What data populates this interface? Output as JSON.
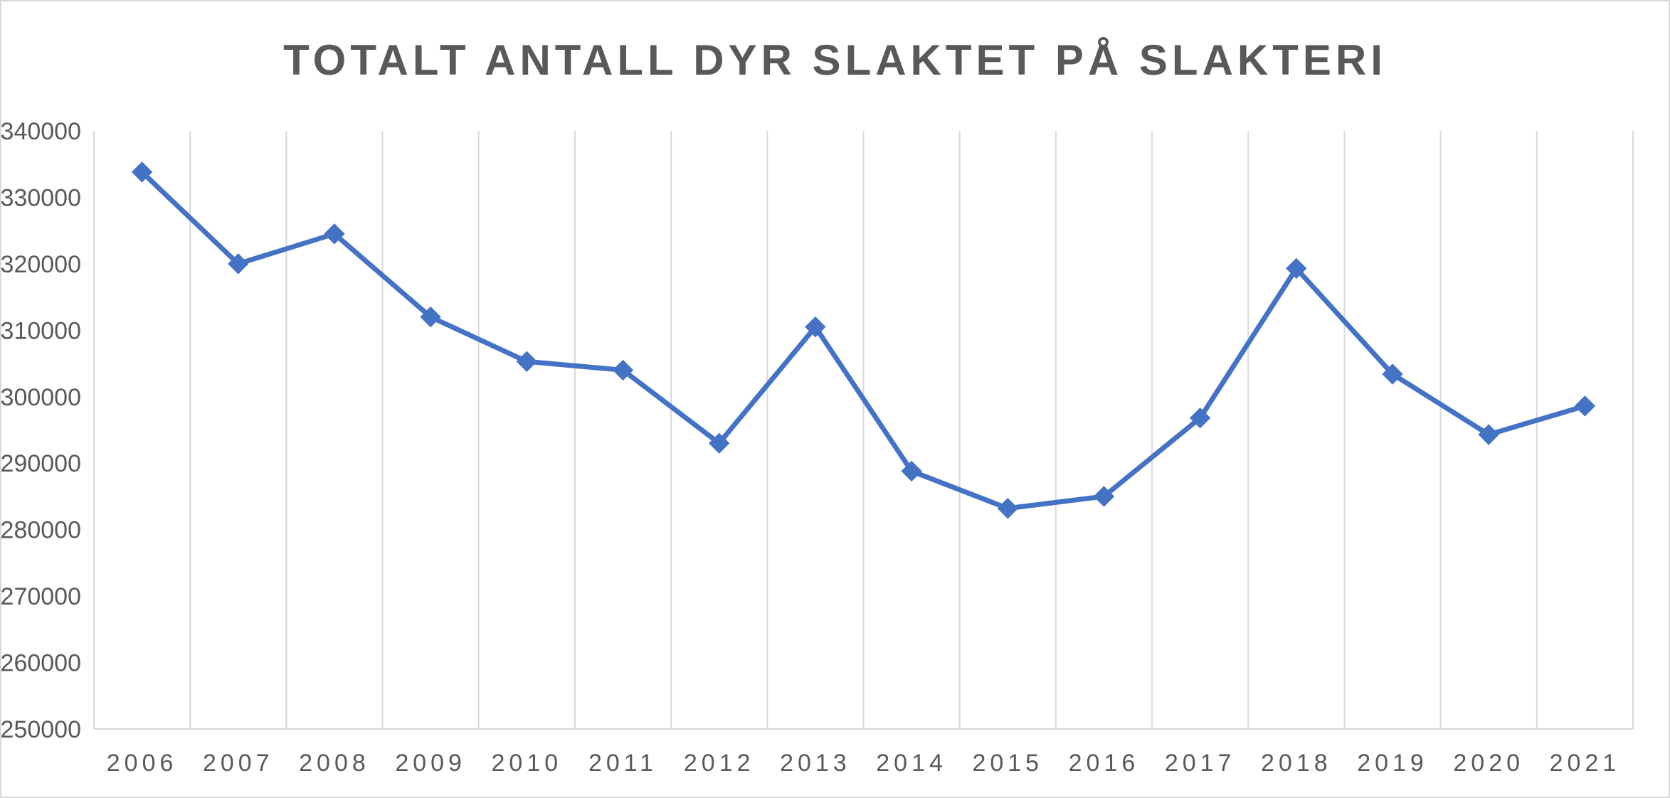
{
  "chart_data": {
    "type": "line",
    "title": "TOTALT ANTALL DYR SLAKTET PÅ SLAKTERI",
    "xlabel": "",
    "ylabel": "",
    "categories": [
      "2006",
      "2007",
      "2008",
      "2009",
      "2010",
      "2011",
      "2012",
      "2013",
      "2014",
      "2015",
      "2016",
      "2017",
      "2018",
      "2019",
      "2020",
      "2021"
    ],
    "series": [
      {
        "values": [
          333800,
          320000,
          324500,
          312000,
          305300,
          304000,
          293000,
          310500,
          288800,
          283200,
          285000,
          296800,
          319300,
          303400,
          294300,
          298600
        ]
      }
    ],
    "ylim": [
      250000,
      340000
    ],
    "yticks": [
      "250000",
      "260000",
      "270000",
      "280000",
      "290000",
      "300000",
      "310000",
      "320000",
      "330000",
      "340000"
    ],
    "grid": "vertical",
    "legend": "none",
    "colors": {
      "line": "#4472c4",
      "grid": "#d9d9d9",
      "text": "#595959"
    },
    "marker": "diamond"
  }
}
